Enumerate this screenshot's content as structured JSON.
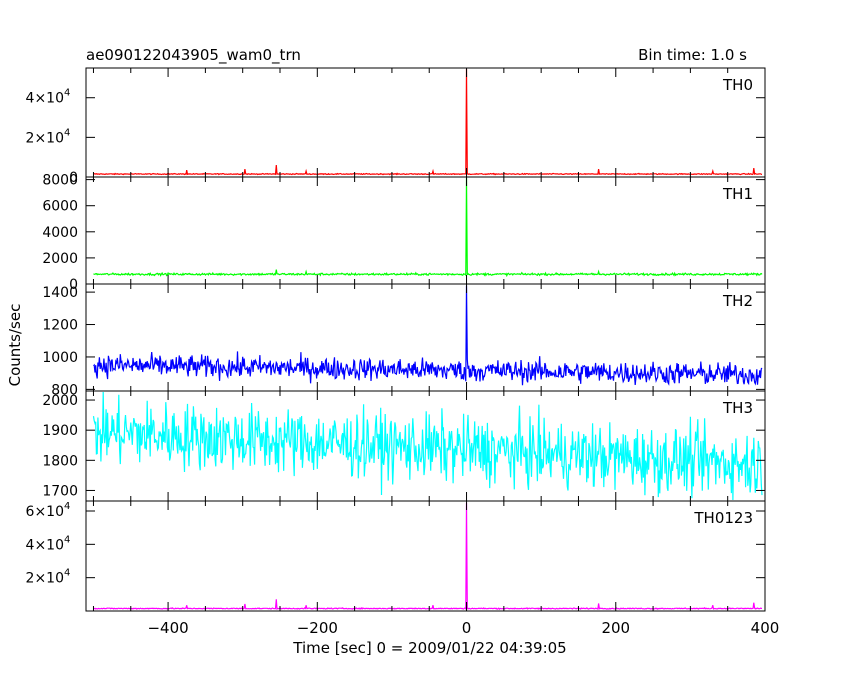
{
  "header": {
    "title": "ae090122043905_wam0_trn",
    "bin_time": "Bin time: 1.0 s"
  },
  "axes": {
    "ylabel": "Counts/sec",
    "xlabel": "Time [sec] 0 = 2009/01/22 04:39:05"
  },
  "chart_data": {
    "type": "line",
    "x_range": [
      -510,
      400
    ],
    "x_ticks": [
      -400,
      -200,
      0,
      200,
      400
    ],
    "x_step": 1,
    "panels": [
      {
        "name": "TH0",
        "color": "#ff0000",
        "ylim": [
          0,
          55000
        ],
        "y_ticks": [
          {
            "v": 0,
            "label": "0"
          },
          {
            "v": 20000,
            "label": "2×10",
            "exp": "4"
          },
          {
            "v": 40000,
            "label": "4×10",
            "exp": "4"
          }
        ],
        "baseline": 1500,
        "noise": 120,
        "trend": 0,
        "spikes": [
          [
            0,
            55000
          ],
          [
            -375,
            3500
          ],
          [
            -297,
            4000
          ],
          [
            -255,
            6000
          ],
          [
            -215,
            3000
          ],
          [
            -45,
            3000
          ],
          [
            177,
            4000
          ],
          [
            330,
            3000
          ],
          [
            385,
            4500
          ]
        ]
      },
      {
        "name": "TH1",
        "color": "#00ff00",
        "ylim": [
          0,
          8200
        ],
        "y_ticks": [
          {
            "v": 0,
            "label": "0"
          },
          {
            "v": 2000,
            "label": "2000"
          },
          {
            "v": 4000,
            "label": "4000"
          },
          {
            "v": 6000,
            "label": "6000"
          },
          {
            "v": 8000,
            "label": "8000"
          }
        ],
        "baseline": 750,
        "noise": 40,
        "trend": 0,
        "spikes": [
          [
            0,
            8200
          ],
          [
            -255,
            1100
          ],
          [
            -215,
            950
          ],
          [
            177,
            950
          ]
        ]
      },
      {
        "name": "TH2",
        "color": "#0000ff",
        "ylim": [
          790,
          1450
        ],
        "y_ticks": [
          {
            "v": 800,
            "label": "800"
          },
          {
            "v": 1000,
            "label": "1000"
          },
          {
            "v": 1200,
            "label": "1200"
          },
          {
            "v": 1400,
            "label": "1400"
          }
        ],
        "baseline": 950,
        "noise": 35,
        "trend": -60,
        "spikes": [
          [
            0,
            1440
          ]
        ]
      },
      {
        "name": "TH3",
        "color": "#00ffff",
        "ylim": [
          1665,
          2030
        ],
        "y_ticks": [
          {
            "v": 1700,
            "label": "1700"
          },
          {
            "v": 1800,
            "label": "1800"
          },
          {
            "v": 1900,
            "label": "1900"
          },
          {
            "v": 2000,
            "label": "2000"
          }
        ],
        "baseline": 1895,
        "noise": 55,
        "trend": -110,
        "spikes": []
      },
      {
        "name": "TH0123",
        "color": "#ff00ff",
        "ylim": [
          0,
          66000
        ],
        "y_ticks": [
          {
            "v": 20000,
            "label": "2×10",
            "exp": "4"
          },
          {
            "v": 40000,
            "label": "4×10",
            "exp": "4"
          },
          {
            "v": 60000,
            "label": "6×10",
            "exp": "4"
          }
        ],
        "baseline": 1500,
        "noise": 150,
        "trend": 0,
        "spikes": [
          [
            0,
            65000
          ],
          [
            -375,
            3500
          ],
          [
            -297,
            4200
          ],
          [
            -255,
            7000
          ],
          [
            -215,
            3500
          ],
          [
            -45,
            3500
          ],
          [
            177,
            4500
          ],
          [
            330,
            3500
          ],
          [
            385,
            5000
          ]
        ]
      }
    ]
  }
}
